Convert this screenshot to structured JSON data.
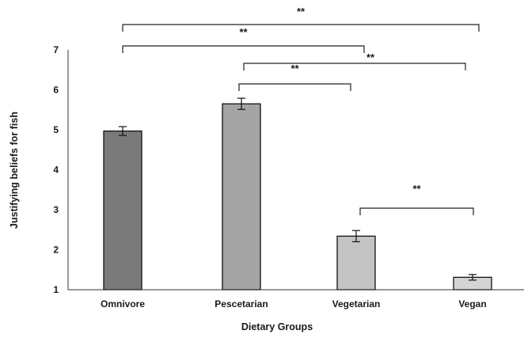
{
  "chart_data": {
    "type": "bar",
    "title": "",
    "xlabel": "Dietary Groups",
    "ylabel": "Justifying  beliefs for fish",
    "ylim": [
      1,
      7
    ],
    "yticks": [
      "1",
      "2",
      "3",
      "4",
      "5",
      "6",
      "7"
    ],
    "grid": false,
    "categories": [
      "Omnivore",
      "Pescetarian",
      "Vegetarian",
      "Vegan"
    ],
    "values": [
      4.97,
      5.65,
      2.34,
      1.31
    ],
    "errors": [
      0.11,
      0.14,
      0.14,
      0.07
    ],
    "bar_colors": [
      "#7a7a7a",
      "#a4a4a4",
      "#c3c3c3",
      "#d4d4d4"
    ],
    "significance": [
      {
        "from": "Omnivore",
        "to": "Vegan",
        "label": "**"
      },
      {
        "from": "Omnivore",
        "to": "Vegetarian",
        "label": "**"
      },
      {
        "from": "Pescetarian",
        "to": "Vegan",
        "label": "**"
      },
      {
        "from": "Pescetarian",
        "to": "Vegetarian",
        "label": "**"
      },
      {
        "from": "Vegetarian",
        "to": "Vegan",
        "label": "**"
      }
    ]
  }
}
